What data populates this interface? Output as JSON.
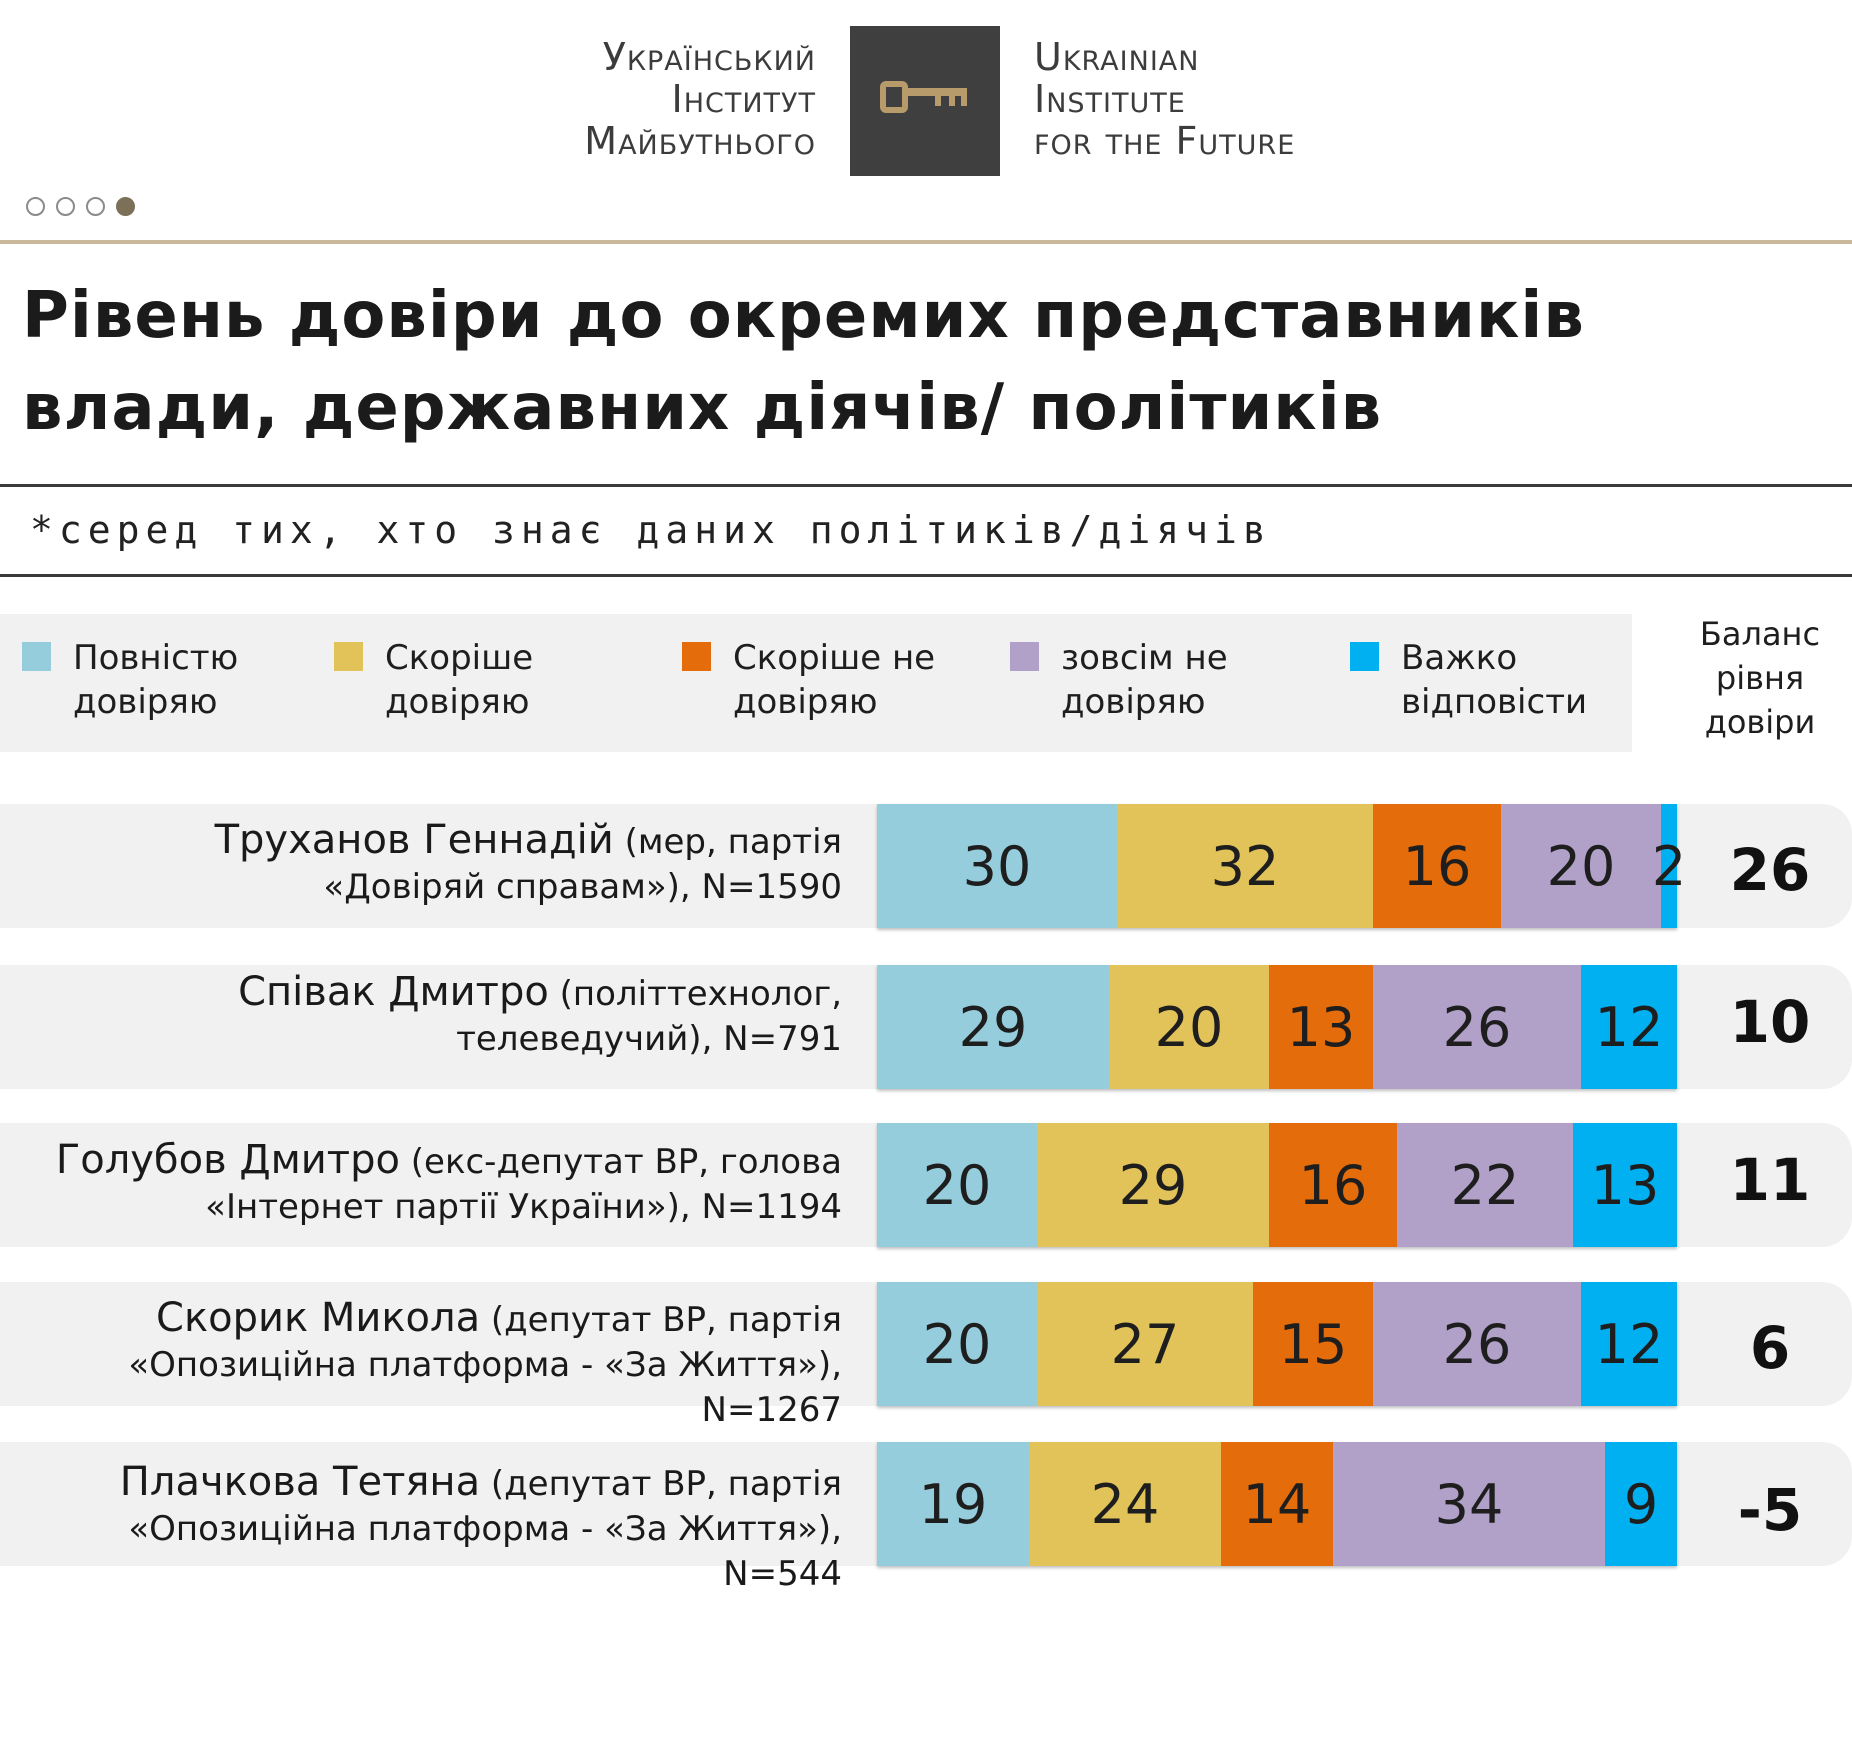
{
  "header": {
    "org_ua": [
      "Український",
      "Інститут",
      "Майбутнього"
    ],
    "org_en": [
      "Ukrainian",
      "Institute",
      "for the Future"
    ]
  },
  "slide_indicator": {
    "total": 4,
    "active": 4
  },
  "title": "Рівень довіри до окремих представників влади, державних діячів/ політиків",
  "subtitle": "*серед тих, хто знає даних політиків/діячів",
  "colors": {
    "full_trust": "#96cddc",
    "rather_trust": "#e2c35a",
    "rather_distrust": "#e46c0a",
    "no_trust": "#b1a0c7",
    "hard_to_say": "#00b0f0",
    "accent_rule": "#c9b99a"
  },
  "legend": [
    {
      "key": "full_trust",
      "label": "Повністю\nдовіряю"
    },
    {
      "key": "rather_trust",
      "label": "Скоріше\nдовіряю"
    },
    {
      "key": "rather_distrust",
      "label": "Скоріше не\nдовіряю"
    },
    {
      "key": "no_trust",
      "label": "зовсім не\nдовіряю"
    },
    {
      "key": "hard_to_say",
      "label": "Важко\nвідповісти"
    }
  ],
  "balance_header": "Баланс\nрівня\nдовіри",
  "chart_data": {
    "type": "bar",
    "orientation": "horizontal",
    "stacked": true,
    "unit": "%",
    "title": "Рівень довіри до окремих представників влади, державних діячів/ політиків",
    "categories": [
      "Труханов Геннадій (мер, партія «Довіряй справам»), N=1590",
      "Співак Дмитро (політтехнолог, телеведучий), N=791",
      "Голубов Дмитро (екс-депутат ВР, голова «Інтернет партії України»), N=1194",
      "Скорик Микола (депутат ВР, партія «Опозиційна платформа - «За Життя»), N=1267",
      "Плачкова Тетяна (депутат ВР, партія «Опозиційна платформа - «За Життя»), N=544"
    ],
    "series": [
      {
        "name": "Повністю довіряю",
        "values": [
          30,
          29,
          20,
          20,
          19
        ]
      },
      {
        "name": "Скоріше довіряю",
        "values": [
          32,
          20,
          29,
          27,
          24
        ]
      },
      {
        "name": "Скоріше не довіряю",
        "values": [
          16,
          13,
          16,
          15,
          14
        ]
      },
      {
        "name": "зовсім не довіряю",
        "values": [
          20,
          26,
          22,
          26,
          34
        ]
      },
      {
        "name": "Важко відповісти",
        "values": [
          2,
          12,
          13,
          12,
          9
        ]
      }
    ],
    "balance": [
      26,
      10,
      11,
      6,
      -5
    ]
  },
  "rows": [
    {
      "name": "Труханов Геннадій",
      "desc_line1": " (мер, партія",
      "line2": "«Довіряй справам»), N=1590",
      "balance": "26"
    },
    {
      "name": "Співак Дмитро",
      "desc_line1": " (політтехнолог,",
      "line2": "телеведучий), N=791",
      "balance": "10"
    },
    {
      "name": "Голубов Дмитро",
      "desc_line1": " (екс-депутат ВР, голова",
      "line2": "«Інтернет партії України»), N=1194",
      "balance": "11"
    },
    {
      "name": "Скорик Микола",
      "desc_line1": " (депутат ВР, партія",
      "line2": "«Опозиційна платформа - «За Життя»), N=1267",
      "balance": "6"
    },
    {
      "name": "Плачкова Тетяна",
      "desc_line1": " (депутат ВР, партія",
      "line2": "«Опозиційна платформа - «За Життя»), N=544",
      "balance": "-5"
    }
  ]
}
